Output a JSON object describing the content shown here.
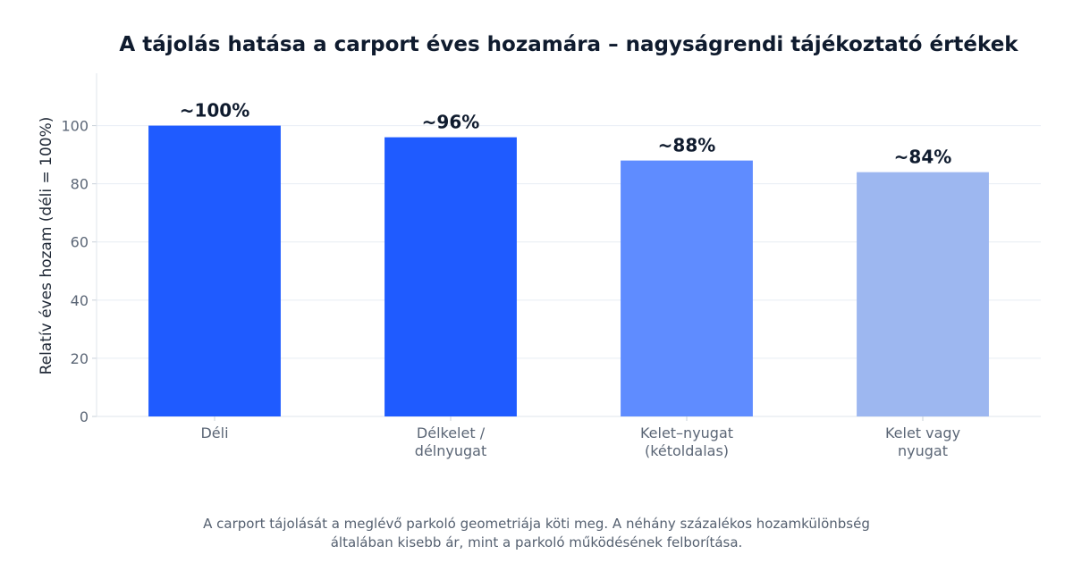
{
  "chart_data": {
    "type": "bar",
    "title": "A tájolás hatása a carport éves hozamára – nagyságrendi tájékoztató értékek",
    "ylabel": "Relatív éves hozam (déli = 100%)",
    "xlabel": "",
    "ylim": [
      0,
      118
    ],
    "yticks": [
      0,
      20,
      40,
      60,
      80,
      100
    ],
    "grid": true,
    "categories": [
      [
        "Déli"
      ],
      [
        "Délkelet /",
        "délnyugat"
      ],
      [
        "Kelet–nyugat",
        "(kétoldalas)"
      ],
      [
        "Kelet vagy",
        "nyugat"
      ]
    ],
    "values": [
      100,
      96,
      88,
      84
    ],
    "data_labels": [
      "~100%",
      "~96%",
      "~88%",
      "~84%"
    ],
    "colors": [
      "#1f5bff",
      "#1f5bff",
      "#5f8cff",
      "#9db7f0"
    ]
  },
  "footnote": {
    "line1": "A carport tájolását a meglévő parkoló geometriája köti meg. A néhány százalékos hozamkülönbség",
    "line2": "általában kisebb ár, mint a parkoló működésének felborítása."
  }
}
